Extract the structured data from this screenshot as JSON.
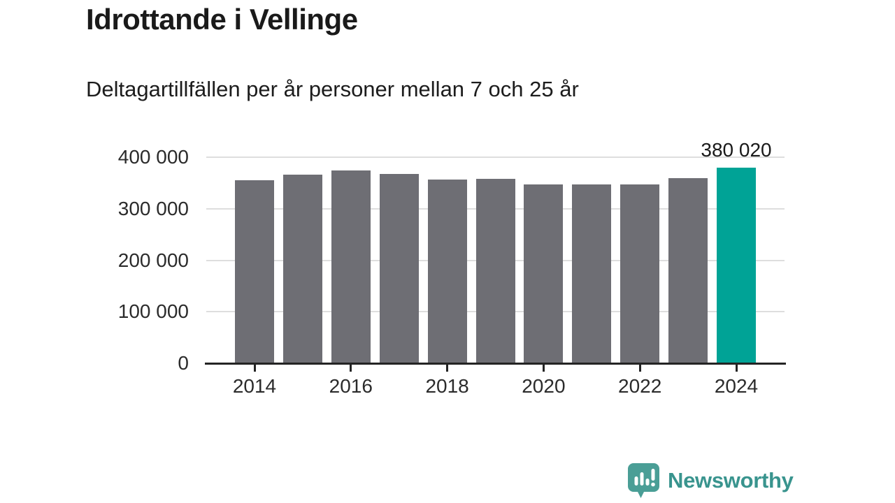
{
  "chart_data": {
    "type": "bar",
    "title": "Idrottande i Vellinge",
    "subtitle": "Deltagartillfällen per år personer mellan 7 och 25 år",
    "categories": [
      "2014",
      "2015",
      "2016",
      "2017",
      "2018",
      "2019",
      "2020",
      "2021",
      "2022",
      "2023",
      "2024"
    ],
    "values": [
      355000,
      366000,
      374000,
      368000,
      356000,
      358000,
      347000,
      347000,
      347000,
      360000,
      380020
    ],
    "highlight": {
      "index": 10,
      "label": "380 020"
    },
    "xlabel": "",
    "ylabel": "",
    "ylim": [
      0,
      400000
    ],
    "y_ticks": [
      {
        "value": 0,
        "label": "0"
      },
      {
        "value": 100000,
        "label": "100 000"
      },
      {
        "value": 200000,
        "label": "200 000"
      },
      {
        "value": 300000,
        "label": "300 000"
      },
      {
        "value": 400000,
        "label": "400 000"
      }
    ],
    "x_tick_labels": [
      "2014",
      "2016",
      "2018",
      "2020",
      "2022",
      "2024"
    ],
    "grid": "horizontal",
    "legend": "none",
    "colors": {
      "bar": "#6E6E74",
      "highlight": "#00A396",
      "gridline": "#DEDEDE",
      "axis": "#242424",
      "text": "#1A1A1A"
    }
  },
  "footer": {
    "brand": "Newsworthy",
    "brand_color": "#39948E",
    "icon_color": "#4A9E96",
    "icon": "newsworthy-speech-bubble-chart-icon"
  }
}
